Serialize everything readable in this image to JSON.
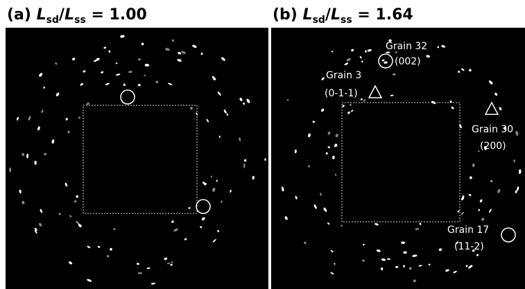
{
  "panels": [
    {
      "title": [
        "(a)",
        "L",
        "sd",
        "/",
        "L",
        "ss",
        "= 1.00"
      ],
      "annotations": []
    },
    {
      "title": [
        "(b)",
        "L",
        "sd",
        "/",
        "L",
        "ss",
        "= 1.64"
      ],
      "annotations": [
        {
          "grain": "Grain 32",
          "index": "(002)"
        },
        {
          "grain": "Grain 3",
          "index": "(0-1-1)"
        },
        {
          "grain": "Grain 30",
          "index": "(200)"
        },
        {
          "grain": "Grain 17",
          "index": "(11-2)"
        }
      ]
    }
  ]
}
